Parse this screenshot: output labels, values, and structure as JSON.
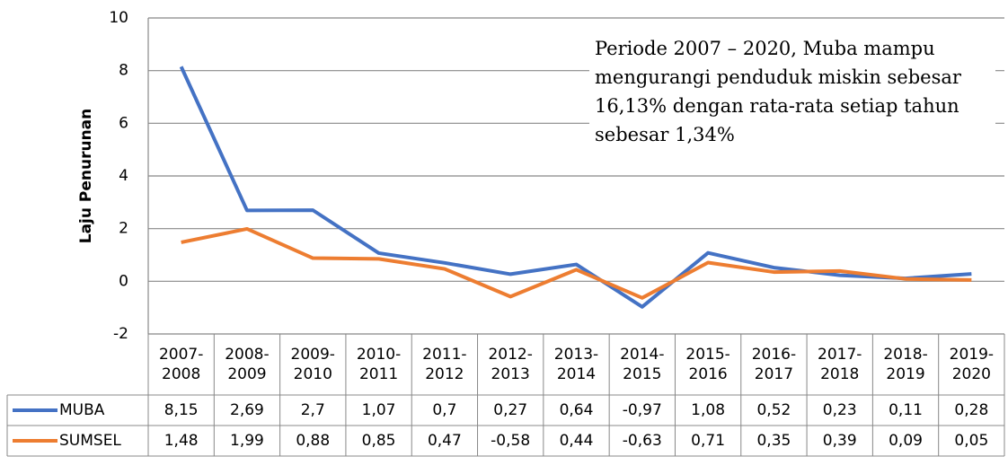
{
  "chart_data": {
    "type": "line",
    "annotation": "Periode 2007 – 2020, Muba mampu mengurangi penduduk miskin sebesar 16,13% dengan rata-rata setiap tahun sebesar 1,34%",
    "y_label": "Laju Penurunan",
    "categories": [
      "2007-2008",
      "2008-2009",
      "2009-2010",
      "2010-2011",
      "2011-2012",
      "2012-2013",
      "2013-2014",
      "2014-2015",
      "2015-2016",
      "2016-2017",
      "2017-2018",
      "2018-2019",
      "2019-2020"
    ],
    "series": [
      {
        "name": "MUBA",
        "color": "#4472c4",
        "values": [
          8.15,
          2.69,
          2.7,
          1.07,
          0.7,
          0.27,
          0.64,
          -0.97,
          1.08,
          0.52,
          0.23,
          0.11,
          0.28
        ],
        "value_labels": [
          "8,15",
          "2,69",
          "2,7",
          "1,07",
          "0,7",
          "0,27",
          "0,64",
          "-0,97",
          "1,08",
          "0,52",
          "0,23",
          "0,11",
          "0,28"
        ]
      },
      {
        "name": "SUMSEL",
        "color": "#ed7d31",
        "values": [
          1.48,
          1.99,
          0.88,
          0.85,
          0.47,
          -0.58,
          0.44,
          -0.63,
          0.71,
          0.35,
          0.39,
          0.09,
          0.05
        ],
        "value_labels": [
          "1,48",
          "1,99",
          "0,88",
          "0,85",
          "0,47",
          "-0,58",
          "0,44",
          "-0,63",
          "0,71",
          "0,35",
          "0,39",
          "0,09",
          "0,05"
        ]
      }
    ],
    "ylim": [
      -2,
      10
    ],
    "yticks": [
      -2,
      0,
      2,
      4,
      6,
      8,
      10
    ],
    "grid": true
  }
}
